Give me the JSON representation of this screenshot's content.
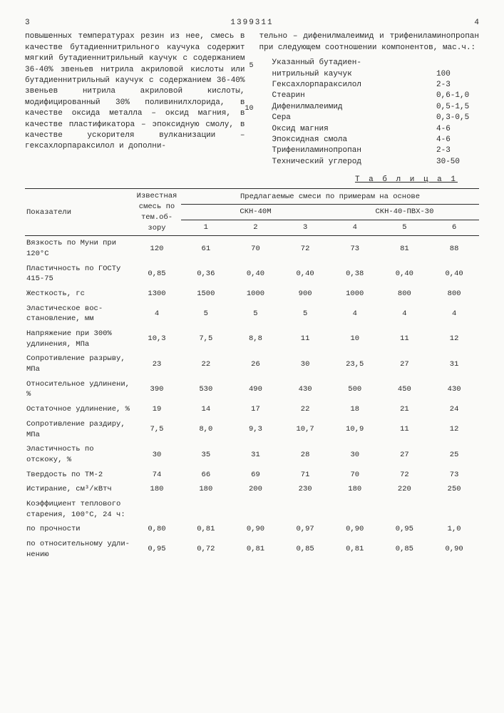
{
  "head": {
    "patent_no": "1399311",
    "page_left": "3",
    "page_right": "4"
  },
  "text": {
    "left": "повышенных температурах резин из нее, смесь в качестве бутадиеннитрильного каучука содержит мягкий бутадиеннитрильный каучук с содержанием 36-40% звеньев нитрила акриловой кислоты или бутадиеннитрильный каучук с содержанием 36-40% звеньев нитрила акриловой кислоты, модифицированный 30% поливинилхлорида, в качестве оксида металла – оксид магния, в качестве пластификатора – эпоксидную смолу, в качестве ускорителя вулканизации – гексахлорпараксилол и дополни-",
    "right_intro": "тельно – дифенилмалеимид и трифениламинопропан при следующем соотношении компонентов, мас.ч.:",
    "ln5": "5",
    "ln10": "10"
  },
  "components": [
    {
      "name": "Указанный бутадиен-",
      "val": ""
    },
    {
      "name": "нитрильный каучук",
      "val": "100"
    },
    {
      "name": "Гексахлорпараксилол",
      "val": "2-3"
    },
    {
      "name": "Стеарин",
      "val": "0,6-1,0"
    },
    {
      "name": "Дифенилмалеимид",
      "val": "0,5-1,5"
    },
    {
      "name": "Сера",
      "val": "0,3-0,5"
    },
    {
      "name": "Оксид магния",
      "val": "4-6"
    },
    {
      "name": "Эпоксидная смола",
      "val": "4-6"
    },
    {
      "name": "Трифениламинопропан",
      "val": "2-3"
    },
    {
      "name": "Технический углерод",
      "val": "30-50"
    }
  ],
  "table": {
    "title": "Т а б л и ц а  1",
    "hdr": {
      "c0": "Показатели",
      "c1": "Извест­ная смесь по тем.об­зору",
      "c_group": "Предлагаемые смеси по примерам на основе",
      "g1": "СКН-40М",
      "g2": "СКН-40-ПВХ-30",
      "n1": "1",
      "n2": "2",
      "n3": "3",
      "n4": "4",
      "n5": "5",
      "n6": "6"
    },
    "rows": [
      {
        "label": "Вязкость по Муни при 120°С",
        "v": [
          "120",
          "61",
          "70",
          "72",
          "73",
          "81",
          "88"
        ]
      },
      {
        "label": "Пластичность по ГОСТу 415-75",
        "v": [
          "0,85",
          "0,36",
          "0,40",
          "0,40",
          "0,38",
          "0,40",
          "0,40"
        ]
      },
      {
        "label": "Жесткость, гс",
        "v": [
          "1300",
          "1500",
          "1000",
          "900",
          "1000",
          "800",
          "800"
        ]
      },
      {
        "label": "Эластическое вос­становление, мм",
        "v": [
          "4",
          "5",
          "5",
          "5",
          "4",
          "4",
          "4"
        ]
      },
      {
        "label": "Напряжение при 300% удлинения, МПа",
        "v": [
          "10,3",
          "7,5",
          "8,8",
          "11",
          "10",
          "11",
          "12"
        ]
      },
      {
        "label": "Сопротивление разрыву, МПа",
        "v": [
          "23",
          "22",
          "26",
          "30",
          "23,5",
          "27",
          "31"
        ]
      },
      {
        "label": "Относительное удлинени, %",
        "v": [
          "390",
          "530",
          "490",
          "430",
          "500",
          "450",
          "430"
        ]
      },
      {
        "label": "Остаточное уд­линение, %",
        "v": [
          "19",
          "14",
          "17",
          "22",
          "18",
          "21",
          "24"
        ]
      },
      {
        "label": "Сопротивление раздиру, МПа",
        "v": [
          "7,5",
          "8,0",
          "9,3",
          "10,7",
          "10,9",
          "11",
          "12"
        ]
      },
      {
        "label": "Эластичность по отскоку, %",
        "v": [
          "30",
          "35",
          "31",
          "28",
          "30",
          "27",
          "25"
        ]
      },
      {
        "label": "Твердость по ТМ-2",
        "v": [
          "74",
          "66",
          "69",
          "71",
          "70",
          "72",
          "73"
        ]
      },
      {
        "label": "Истирание, см³/кВтч",
        "v": [
          "180",
          "180",
          "200",
          "230",
          "180",
          "220",
          "250"
        ]
      },
      {
        "label": "Коэффициент теп­лового старения, 100°С, 24 ч:",
        "v": [
          "",
          "",
          "",
          "",
          "",
          "",
          ""
        ]
      },
      {
        "label": "   по прочности",
        "v": [
          "0,80",
          "0,81",
          "0,90",
          "0,97",
          "0,90",
          "0,95",
          "1,0"
        ]
      },
      {
        "label": "   по относи­тельному удли­нению",
        "v": [
          "0,95",
          "0,72",
          "0,81",
          "0,85",
          "0,81",
          "0,85",
          "0,90"
        ]
      }
    ]
  }
}
